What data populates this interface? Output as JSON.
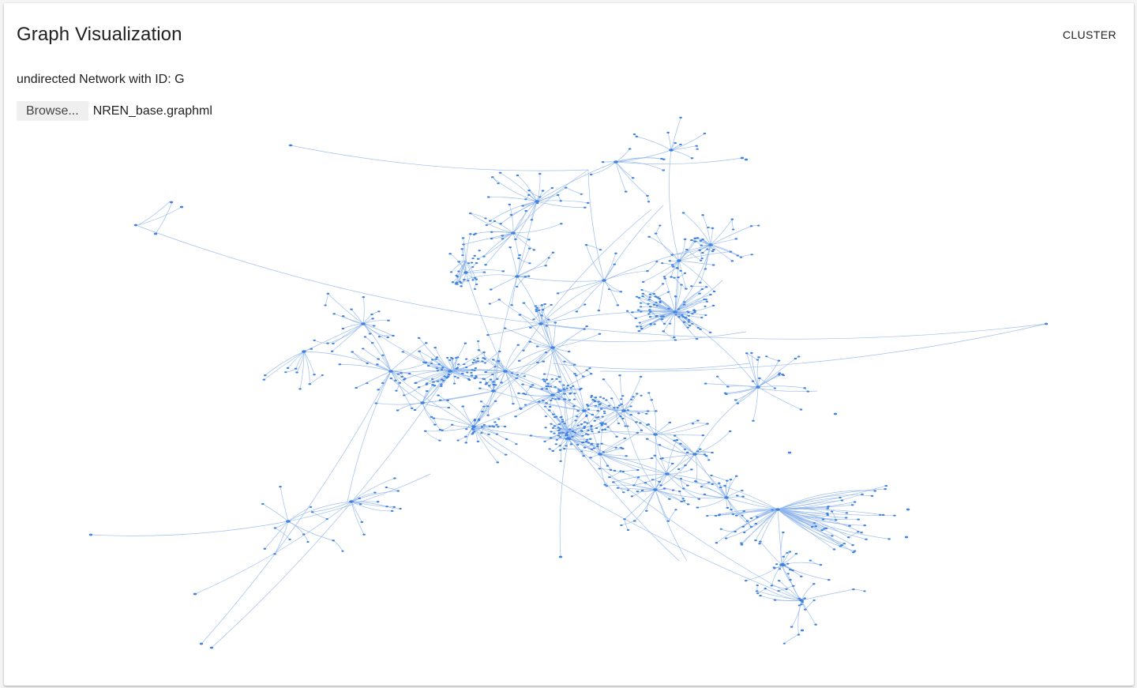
{
  "header": {
    "title": "Graph Visualization",
    "cluster_label": "CLUSTER"
  },
  "network": {
    "description": "undirected Network with ID: G"
  },
  "file_input": {
    "browse_label": "Browse...",
    "file_name": "NREN_base.graphml"
  },
  "colors": {
    "accent": "#3f82e0",
    "edge": "#8db4ec",
    "background": "#ffffff"
  }
}
